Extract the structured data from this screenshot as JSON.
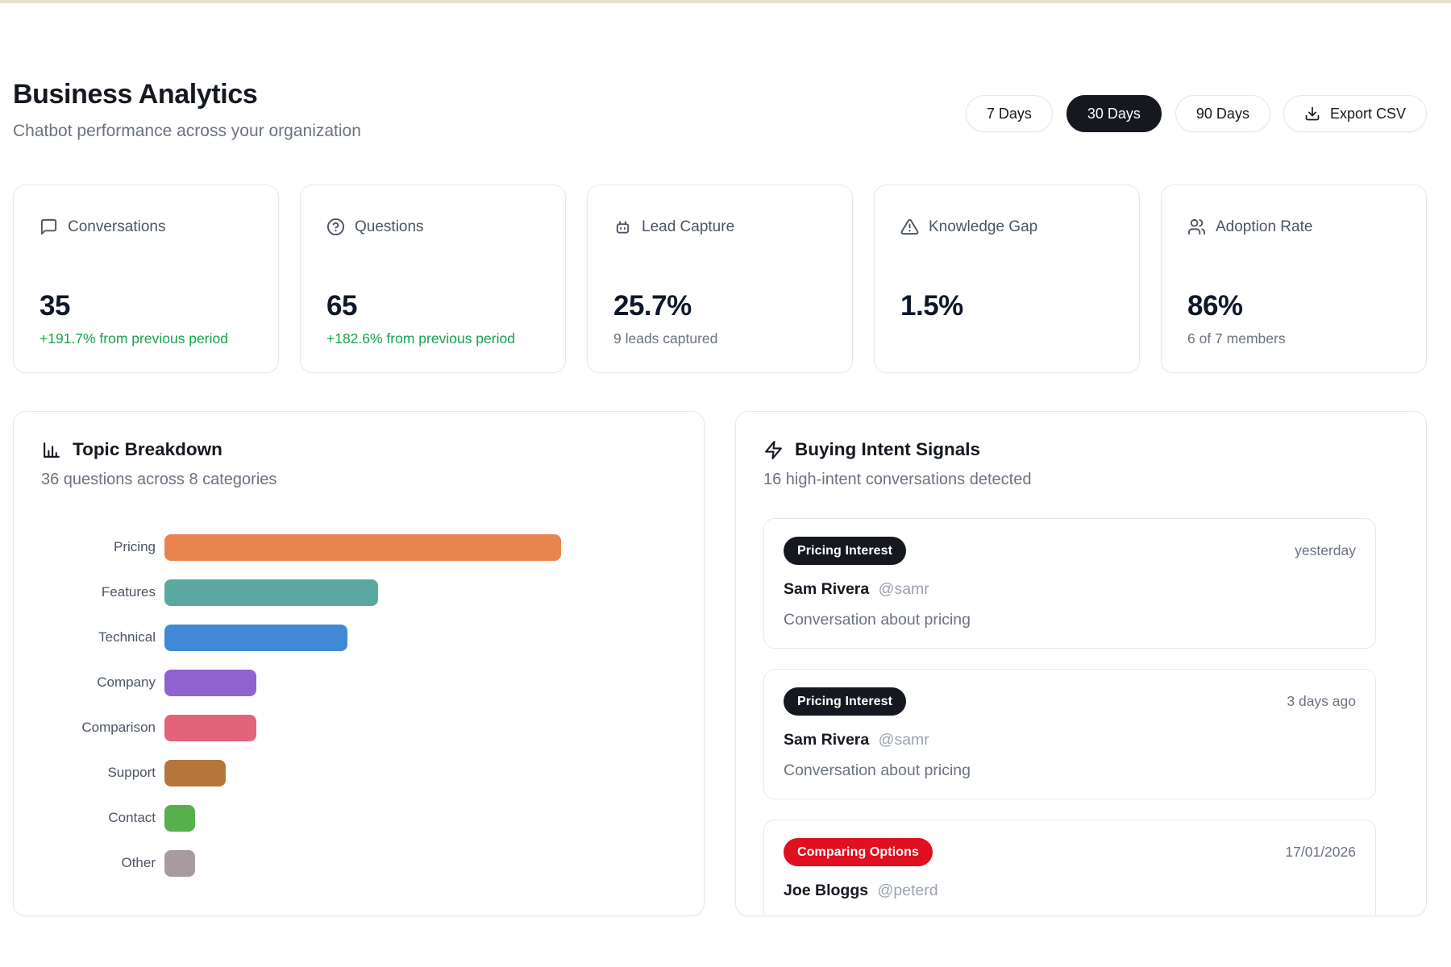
{
  "page": {
    "title": "Business Analytics",
    "subtitle": "Chatbot performance across your organization"
  },
  "toolbar": {
    "ranges": [
      {
        "label": "7 Days",
        "active": false
      },
      {
        "label": "30 Days",
        "active": true
      },
      {
        "label": "90 Days",
        "active": false
      }
    ],
    "export_label": "Export CSV"
  },
  "stats": [
    {
      "icon": "message-icon",
      "label": "Conversations",
      "value": "35",
      "delta": "+191.7% from previous period"
    },
    {
      "icon": "help-icon",
      "label": "Questions",
      "value": "65",
      "delta": "+182.6% from previous period"
    },
    {
      "icon": "robot-icon",
      "label": "Lead Capture",
      "value": "25.7%",
      "sub": "9 leads captured"
    },
    {
      "icon": "alert-icon",
      "label": "Knowledge Gap",
      "value": "1.5%"
    },
    {
      "icon": "users-icon",
      "label": "Adoption Rate",
      "value": "86%",
      "sub": "6 of 7 members"
    }
  ],
  "topic_breakdown": {
    "title": "Topic Breakdown",
    "subtitle": "36 questions across 8 categories"
  },
  "chart_data": {
    "type": "bar",
    "orientation": "horizontal",
    "title": "Topic Breakdown",
    "subtitle": "36 questions across 8 categories",
    "categories": [
      "Pricing",
      "Features",
      "Technical",
      "Company",
      "Comparison",
      "Support",
      "Contact",
      "Other"
    ],
    "values": [
      13,
      7,
      6,
      3,
      3,
      2,
      1,
      1
    ],
    "colors": [
      "#e8854e",
      "#5ba8a0",
      "#4189d6",
      "#9061d0",
      "#e2637a",
      "#b5763a",
      "#57b04c",
      "#a89b9e"
    ],
    "xlabel": "",
    "ylabel": "",
    "xlim": [
      0,
      13
    ],
    "grid": false,
    "legend": false
  },
  "intent": {
    "title": "Buying Intent Signals",
    "subtitle": "16 high-intent conversations detected",
    "items": [
      {
        "badge": "Pricing Interest",
        "badge_color": "#15181e",
        "time": "yesterday",
        "name": "Sam Rivera",
        "handle": "@samr",
        "desc": "Conversation about pricing"
      },
      {
        "badge": "Pricing Interest",
        "badge_color": "#15181e",
        "time": "3 days ago",
        "name": "Sam Rivera",
        "handle": "@samr",
        "desc": "Conversation about pricing"
      },
      {
        "badge": "Comparing Options",
        "badge_color": "#e01020",
        "time": "17/01/2026",
        "name": "Joe Bloggs",
        "handle": "@peterd"
      }
    ]
  },
  "theme": {
    "top_strip": "#e6e2cd",
    "green": "#16a34a",
    "red": "#e01020",
    "dark": "#15181e",
    "border": "#e5e7eb"
  }
}
